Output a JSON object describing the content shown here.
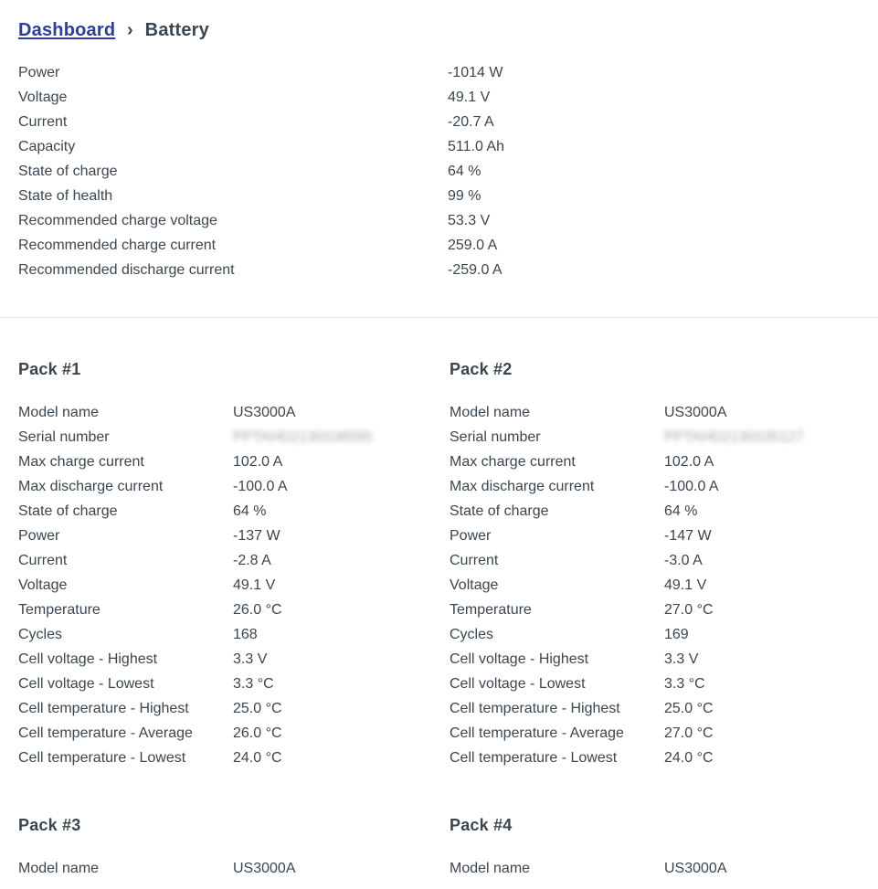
{
  "colors": {
    "text": "#3b4650",
    "link": "#2c3d9e",
    "divider": "#e9e9e9",
    "background": "#ffffff"
  },
  "breadcrumb": {
    "link": "Dashboard",
    "separator": "›",
    "current": "Battery"
  },
  "summary": {
    "rows": [
      {
        "label": "Power",
        "value": "-1014 W"
      },
      {
        "label": "Voltage",
        "value": "49.1 V"
      },
      {
        "label": "Current",
        "value": "-20.7 A"
      },
      {
        "label": "Capacity",
        "value": "511.0 Ah"
      },
      {
        "label": "State of charge",
        "value": "64 %"
      },
      {
        "label": "State of health",
        "value": "99 %"
      },
      {
        "label": "Recommended charge voltage",
        "value": "53.3 V"
      },
      {
        "label": "Recommended charge current",
        "value": "259.0 A"
      },
      {
        "label": "Recommended discharge current",
        "value": "-259.0 A"
      }
    ]
  },
  "packs": [
    {
      "title": "Pack #1",
      "rows": [
        {
          "label": "Model name",
          "value": "US3000A"
        },
        {
          "label": "Serial number",
          "value": "PPTAHD2130106595",
          "blurred": true
        },
        {
          "label": "Max charge current",
          "value": "102.0 A"
        },
        {
          "label": "Max discharge current",
          "value": "-100.0 A"
        },
        {
          "label": "State of charge",
          "value": "64 %"
        },
        {
          "label": "Power",
          "value": "-137 W"
        },
        {
          "label": "Current",
          "value": "-2.8 A"
        },
        {
          "label": "Voltage",
          "value": "49.1 V"
        },
        {
          "label": "Temperature",
          "value": "26.0 °C"
        },
        {
          "label": "Cycles",
          "value": "168"
        },
        {
          "label": "Cell voltage - Highest",
          "value": "3.3 V"
        },
        {
          "label": "Cell voltage - Lowest",
          "value": "3.3 °C"
        },
        {
          "label": "Cell temperature - Highest",
          "value": "25.0 °C"
        },
        {
          "label": "Cell temperature - Average",
          "value": "26.0 °C"
        },
        {
          "label": "Cell temperature - Lowest",
          "value": "24.0 °C"
        }
      ]
    },
    {
      "title": "Pack #2",
      "rows": [
        {
          "label": "Model name",
          "value": "US3000A"
        },
        {
          "label": "Serial number",
          "value": "PPTAHD2130105127",
          "blurred": true
        },
        {
          "label": "Max charge current",
          "value": "102.0 A"
        },
        {
          "label": "Max discharge current",
          "value": "-100.0 A"
        },
        {
          "label": "State of charge",
          "value": "64 %"
        },
        {
          "label": "Power",
          "value": "-147 W"
        },
        {
          "label": "Current",
          "value": "-3.0 A"
        },
        {
          "label": "Voltage",
          "value": "49.1 V"
        },
        {
          "label": "Temperature",
          "value": "27.0 °C"
        },
        {
          "label": "Cycles",
          "value": "169"
        },
        {
          "label": "Cell voltage - Highest",
          "value": "3.3 V"
        },
        {
          "label": "Cell voltage - Lowest",
          "value": "3.3 °C"
        },
        {
          "label": "Cell temperature - Highest",
          "value": "25.0 °C"
        },
        {
          "label": "Cell temperature - Average",
          "value": "27.0 °C"
        },
        {
          "label": "Cell temperature - Lowest",
          "value": "24.0 °C"
        }
      ]
    },
    {
      "title": "Pack #3",
      "rows": [
        {
          "label": "Model name",
          "value": "US3000A"
        }
      ]
    },
    {
      "title": "Pack #4",
      "rows": [
        {
          "label": "Model name",
          "value": "US3000A"
        }
      ]
    }
  ]
}
